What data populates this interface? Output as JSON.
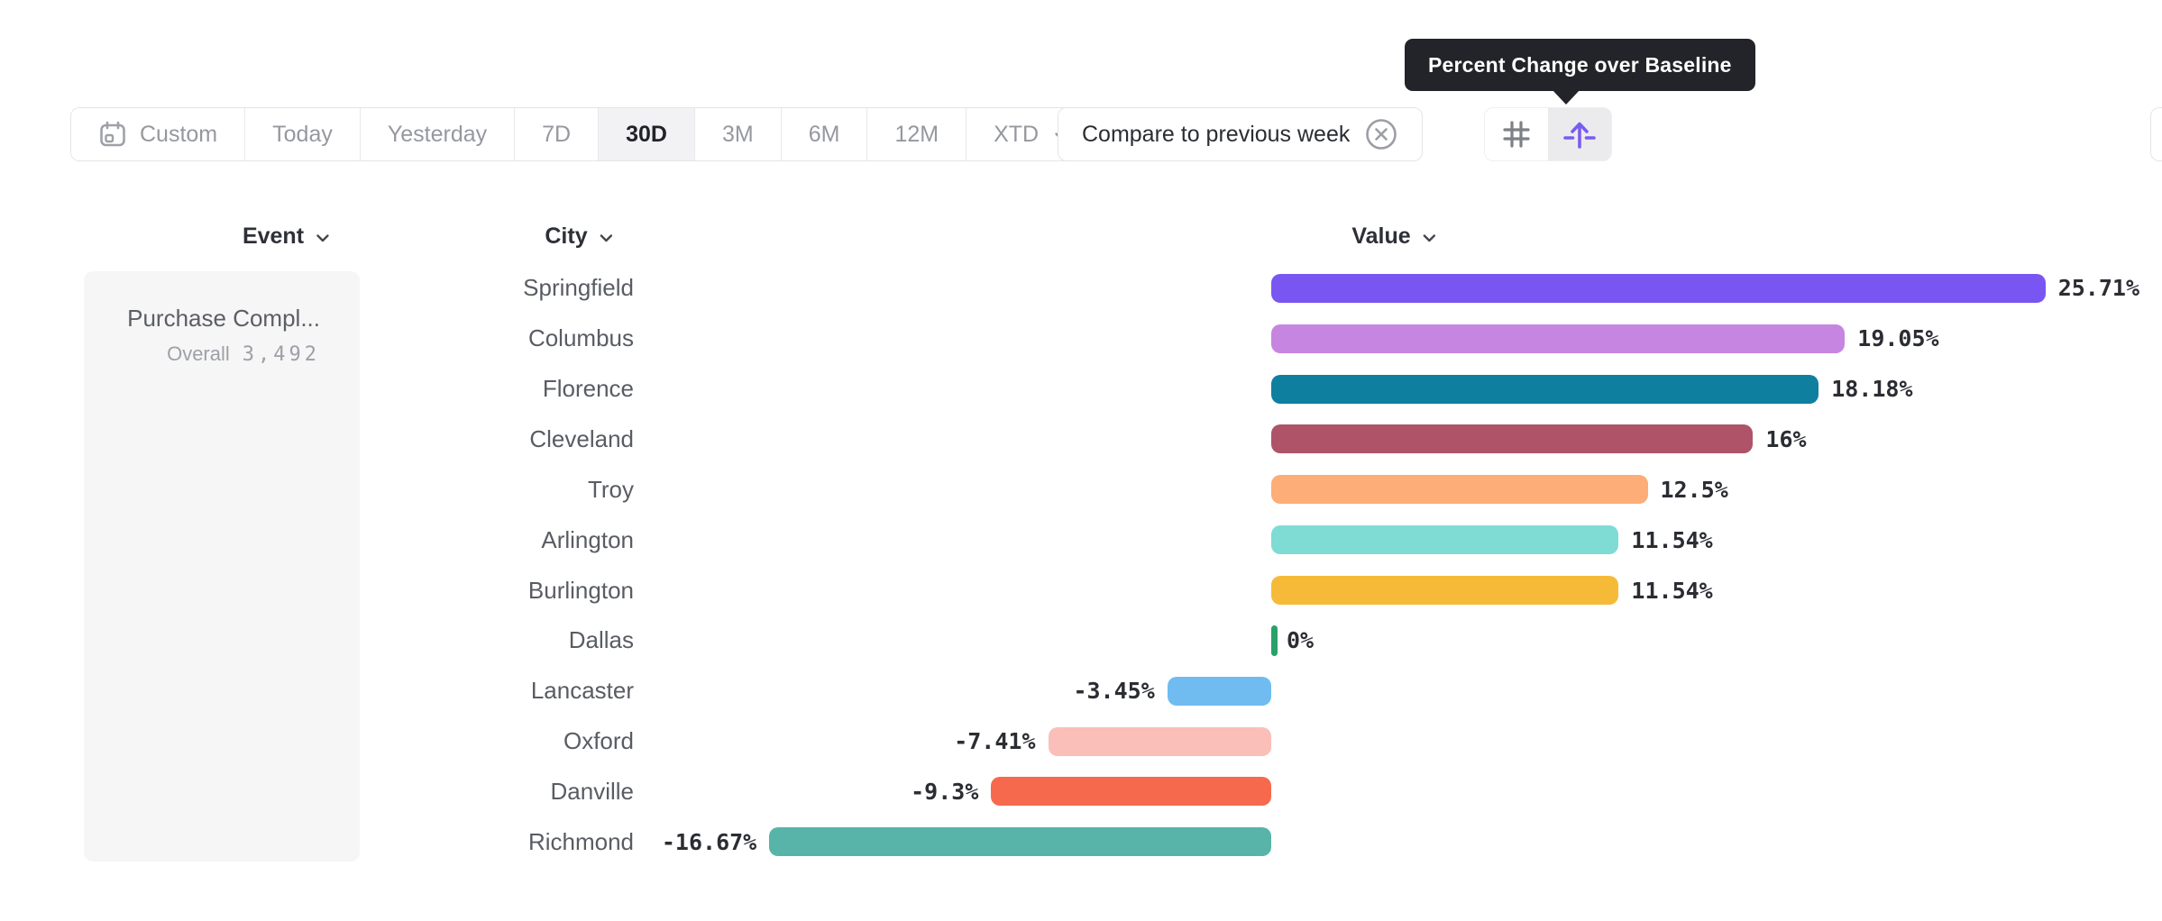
{
  "tooltip": {
    "text": "Percent Change over Baseline"
  },
  "toolbar": {
    "date_ranges": [
      {
        "label": "Custom",
        "icon": "calendar-icon",
        "selected": false
      },
      {
        "label": "Today",
        "selected": false
      },
      {
        "label": "Yesterday",
        "selected": false
      },
      {
        "label": "7D",
        "selected": false
      },
      {
        "label": "30D",
        "selected": true
      },
      {
        "label": "3M",
        "selected": false
      },
      {
        "label": "6M",
        "selected": false
      },
      {
        "label": "12M",
        "selected": false
      },
      {
        "label": "XTD",
        "selected": false,
        "chevron": true
      }
    ],
    "compare_chip": {
      "label": "Compare to previous week",
      "dismiss_icon": "x-circle-icon"
    },
    "view_toggles": [
      {
        "name": "grid-view-button",
        "icon": "grid-hash-icon",
        "selected": false,
        "icon_color": "#7E8087"
      },
      {
        "name": "baseline-view-button",
        "icon": "baseline-arrow-icon",
        "selected": true,
        "icon_color": "#7A5BF2"
      }
    ]
  },
  "columns": [
    {
      "label": "Event"
    },
    {
      "label": "City"
    },
    {
      "label": "Value"
    }
  ],
  "event_panel": {
    "title": "Purchase Compl...",
    "overall_label": "Overall",
    "overall_value": "3,492"
  },
  "chart_data": {
    "type": "bar",
    "orientation": "horizontal",
    "title": "Percent Change over Baseline",
    "value_format": "percent",
    "baseline": 0,
    "xlim": [
      -16.67,
      25.71
    ],
    "categories": [
      "Springfield",
      "Columbus",
      "Florence",
      "Cleveland",
      "Troy",
      "Arlington",
      "Burlington",
      "Dallas",
      "Lancaster",
      "Oxford",
      "Danville",
      "Richmond"
    ],
    "values": [
      25.71,
      19.05,
      18.18,
      16,
      12.5,
      11.54,
      11.54,
      0,
      -3.45,
      -7.41,
      -9.3,
      -16.67
    ],
    "labels": [
      "25.71%",
      "19.05%",
      "18.18%",
      "16%",
      "12.5%",
      "11.54%",
      "11.54%",
      "0%",
      "-3.45%",
      "-7.41%",
      "-9.3%",
      "-16.67%"
    ],
    "colors": [
      "#7956F2",
      "#C685E0",
      "#0F7FA0",
      "#AE5368",
      "#FCAD78",
      "#7EDCD4",
      "#F5BB38",
      "#2AA168",
      "#70BCF0",
      "#F9BFB8",
      "#F6694C",
      "#58B4A8"
    ]
  }
}
